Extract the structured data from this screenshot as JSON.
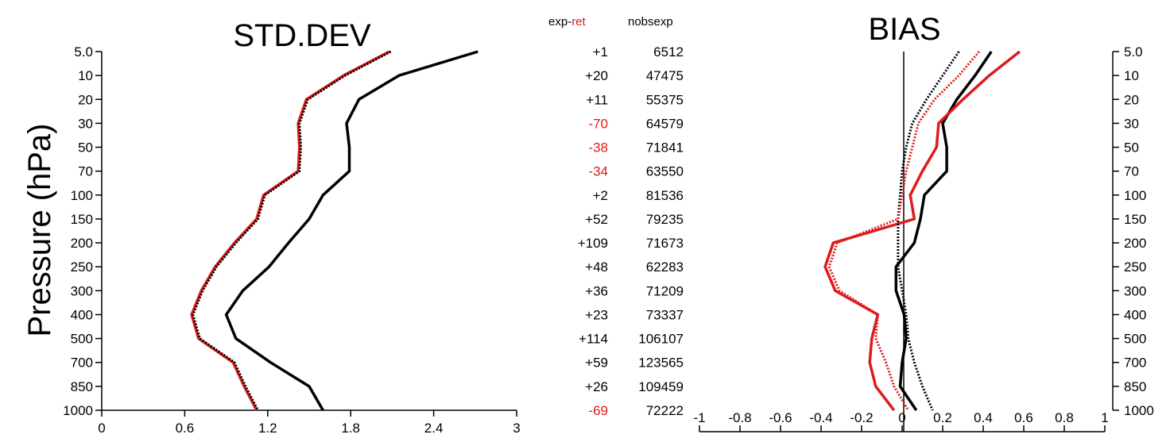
{
  "colors": {
    "control": "#000000",
    "experiment": "#dd1c1c"
  },
  "y_axis_label": "Pressure (hPa)",
  "levels": [
    "5.0",
    "10",
    "20",
    "30",
    "50",
    "70",
    "100",
    "150",
    "200",
    "250",
    "300",
    "400",
    "500",
    "700",
    "850",
    "1000"
  ],
  "table": {
    "header_exp": "exp",
    "header_minus": "-",
    "header_ret": "ret",
    "header_nobs": "nobsexp",
    "rows": [
      {
        "diff": "+1",
        "nobs": "6512",
        "highlight": false
      },
      {
        "diff": "+20",
        "nobs": "47475",
        "highlight": false
      },
      {
        "diff": "+11",
        "nobs": "55375",
        "highlight": false
      },
      {
        "diff": "-70",
        "nobs": "64579",
        "highlight": true
      },
      {
        "diff": "-38",
        "nobs": "71841",
        "highlight": true
      },
      {
        "diff": "-34",
        "nobs": "63550",
        "highlight": true
      },
      {
        "diff": "+2",
        "nobs": "81536",
        "highlight": false
      },
      {
        "diff": "+52",
        "nobs": "79235",
        "highlight": false
      },
      {
        "diff": "+109",
        "nobs": "71673",
        "highlight": false
      },
      {
        "diff": "+48",
        "nobs": "62283",
        "highlight": false
      },
      {
        "diff": "+36",
        "nobs": "71209",
        "highlight": false
      },
      {
        "diff": "+23",
        "nobs": "73337",
        "highlight": false
      },
      {
        "diff": "+114",
        "nobs": "106107",
        "highlight": false
      },
      {
        "diff": "+59",
        "nobs": "123565",
        "highlight": false
      },
      {
        "diff": "+26",
        "nobs": "109459",
        "highlight": false
      },
      {
        "diff": "-69",
        "nobs": "72222",
        "highlight": true
      }
    ]
  },
  "chart_data": [
    {
      "type": "line",
      "title": "STD.DEV",
      "xlabel": "",
      "ylabel": "Pressure (hPa)",
      "xlim": [
        0,
        3
      ],
      "x_ticks": [
        "0",
        "0.6",
        "1.2",
        "1.8",
        "2.4",
        "3"
      ],
      "y_categories": [
        "5.0",
        "10",
        "20",
        "30",
        "50",
        "70",
        "100",
        "150",
        "200",
        "250",
        "300",
        "400",
        "500",
        "700",
        "850",
        "1000"
      ],
      "series": [
        {
          "color": "#000000",
          "style": "solid",
          "values": [
            2.72,
            2.15,
            1.86,
            1.77,
            1.79,
            1.79,
            1.6,
            1.5,
            1.35,
            1.21,
            1.02,
            0.9,
            0.97,
            1.22,
            1.5,
            1.6
          ]
        },
        {
          "color": "#dd1c1c",
          "style": "solid",
          "values": [
            2.08,
            1.75,
            1.48,
            1.42,
            1.43,
            1.42,
            1.17,
            1.12,
            0.96,
            0.82,
            0.72,
            0.65,
            0.7,
            0.95,
            1.03,
            1.12
          ]
        },
        {
          "color": "#000000",
          "style": "dotted",
          "values": [
            2.09,
            1.76,
            1.49,
            1.43,
            1.44,
            1.43,
            1.18,
            1.13,
            0.97,
            0.83,
            0.73,
            0.66,
            0.71,
            0.96,
            1.04,
            1.13
          ]
        }
      ]
    },
    {
      "type": "line",
      "title": "BIAS",
      "xlabel": "",
      "ylabel": "",
      "xlim": [
        -1,
        1
      ],
      "x_ticks": [
        "-1",
        "-0.8",
        "-0.6",
        "-0.4",
        "-0.2",
        "0",
        "0.2",
        "0.4",
        "0.6",
        "0.8",
        "1"
      ],
      "y_categories": [
        "5.0",
        "10",
        "20",
        "30",
        "50",
        "70",
        "100",
        "150",
        "200",
        "250",
        "300",
        "400",
        "500",
        "700",
        "850",
        "1000"
      ],
      "series": [
        {
          "color": "#000000",
          "style": "solid",
          "values": [
            0.44,
            0.36,
            0.27,
            0.2,
            0.22,
            0.22,
            0.11,
            0.09,
            0.06,
            -0.03,
            -0.03,
            0.01,
            0.02,
            0.0,
            -0.01,
            0.07
          ]
        },
        {
          "color": "#dd1c1c",
          "style": "solid",
          "values": [
            0.58,
            0.43,
            0.3,
            0.18,
            0.17,
            0.1,
            0.04,
            0.06,
            -0.34,
            -0.38,
            -0.33,
            -0.12,
            -0.15,
            -0.16,
            -0.13,
            -0.04
          ]
        },
        {
          "color": "#000000",
          "style": "dotted",
          "values": [
            0.28,
            0.2,
            0.12,
            0.05,
            0.02,
            0.0,
            -0.01,
            -0.02,
            -0.02,
            -0.02,
            0.0,
            0.02,
            0.03,
            0.06,
            0.1,
            0.15
          ]
        },
        {
          "color": "#dd1c1c",
          "style": "dotted",
          "values": [
            0.38,
            0.28,
            0.16,
            0.08,
            0.05,
            0.02,
            0.0,
            -0.02,
            -0.32,
            -0.36,
            -0.31,
            -0.12,
            -0.13,
            -0.08,
            -0.04,
            0.03
          ]
        }
      ]
    }
  ]
}
